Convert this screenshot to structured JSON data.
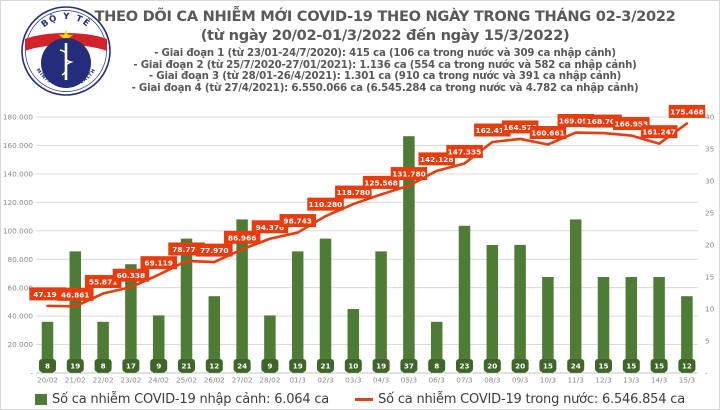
{
  "header": {
    "logo": {
      "top_text": "BỘ Y TẾ",
      "bottom_text": "MINISTRY OF HEALTH"
    },
    "title": "THEO DÕI CA NHIỄM MỚI COVID-19 THEO NGÀY TRONG THÁNG 02-3/2022",
    "subtitle": "(từ ngày 20/02-01/3/2022 đến ngày 15/3/2022)",
    "stages": [
      "- Giai đoạn 1 (từ 23/01-24/7/2020): 415 ca (106 ca trong nước và 309 ca nhập cảnh)",
      "- Giai đoạn 2 (từ 25/7/2020-27/01/2021): 1.136 ca (554 ca trong nước và 582 ca nhập cảnh)",
      "- Giai đoạn 3 (từ 28/01-26/4/2021): 1.301 ca (910 ca trong nước và 391 ca nhập cảnh)",
      "- Giai đoạn 4 (từ 27/4/2021): 6.550.066 ca (6.545.284 ca trong nước và 4.782 ca nhập cảnh)"
    ]
  },
  "chart_data": {
    "type": "combo",
    "categories": [
      "20/02",
      "21/02",
      "22/02",
      "23/02",
      "24/02",
      "25/02",
      "26/02",
      "27/02",
      "28/02",
      "01/3",
      "02/3",
      "03/3",
      "04/3",
      "05/3",
      "06/3",
      "07/3",
      "08/3",
      "09/3",
      "10/3",
      "11/3",
      "12/3",
      "13/3",
      "14/3",
      "15/3"
    ],
    "series": [
      {
        "name": "Số ca nhiễm COVID-19 nhập cảnh",
        "type": "bar",
        "axis": "right",
        "color": "#4e7b35",
        "label_chip_color": "#3f652a",
        "values": [
          8,
          19,
          8,
          17,
          9,
          21,
          12,
          24,
          9,
          19,
          21,
          10,
          19,
          37,
          8,
          23,
          20,
          20,
          15,
          24,
          15,
          15,
          15,
          12
        ]
      },
      {
        "name": "Số ca nhiễm COVID-19 trong nước",
        "type": "line",
        "axis": "left",
        "color": "#e73c0e",
        "values": [
          47192,
          46861,
          55871,
          60338,
          69119,
          78774,
          77970,
          86966,
          94376,
          98743,
          110280,
          118780,
          125568,
          131780,
          142128,
          147335,
          162415,
          164576,
          160661,
          169090,
          168704,
          166953,
          161247,
          175468
        ]
      }
    ],
    "left_axis": {
      "min": 0,
      "max": 180000,
      "step": 20000,
      "zero_label": "-",
      "number_format": "thousands-dot"
    },
    "right_axis": {
      "min": 0,
      "max": 40,
      "step": 5,
      "zero_label": "-"
    },
    "grid": "horizontal",
    "legend_position": "bottom"
  },
  "legend": {
    "items": [
      {
        "marker": "square",
        "color": "#4e7b35",
        "label": "Số ca nhiễm COVID-19 nhập cảnh: 6.064 ca"
      },
      {
        "marker": "line",
        "color": "#e73c0e",
        "label": "Số ca nhiễm COVID-19 trong nước: 6.546.854 ca"
      }
    ]
  }
}
